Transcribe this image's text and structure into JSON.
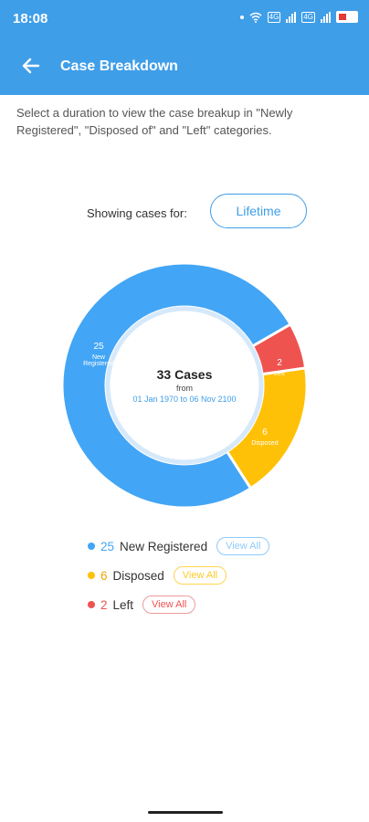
{
  "status_bar": {
    "time": "18:08",
    "sim_labels": [
      "4G",
      "4G"
    ]
  },
  "header": {
    "title": "Case Breakdown",
    "back_icon": "arrow-left-icon",
    "color": "#3f9ee8"
  },
  "description": "Select a duration to view the case breakup in \"Newly Registered\", \"Disposed of\" and \"Left\" categories.",
  "filter": {
    "label": "Showing cases for:",
    "selected": "Lifetime"
  },
  "chart_data": {
    "type": "pie",
    "variant": "donut",
    "categories": [
      "New Registered",
      "Disposed",
      "Left"
    ],
    "values": [
      25,
      6,
      2
    ],
    "colors": [
      "#42a5f5",
      "#ffc107",
      "#ef5350"
    ],
    "center": {
      "title": "33 Cases",
      "from_label": "from",
      "range": "01 Jan 1970 to 06 Nov 2100"
    },
    "slice_labels": [
      {
        "value": "25",
        "name": "New Registered"
      },
      {
        "value": "6",
        "name": "Disposed"
      },
      {
        "value": "2",
        "name": "Left"
      }
    ]
  },
  "legend": [
    {
      "count": "25",
      "label": "New Registered",
      "button": "View All",
      "color": "#42a5f5"
    },
    {
      "count": "6",
      "label": "Disposed",
      "button": "View All",
      "color": "#ffc107"
    },
    {
      "count": "2",
      "label": "Left",
      "button": "View All",
      "color": "#ef5350"
    }
  ]
}
